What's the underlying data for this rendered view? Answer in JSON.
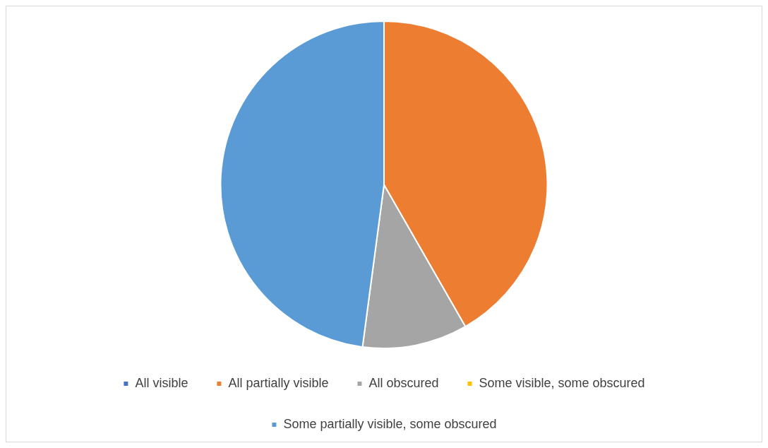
{
  "chart_data": {
    "type": "pie",
    "categories": [
      "All visible",
      "All partially visible",
      "All obscured",
      "Some visible, some obscured",
      "Some partially visible, some obscured"
    ],
    "values": [
      0,
      41.7,
      10.4,
      0,
      47.9
    ],
    "colors": [
      "#4472c4",
      "#ed7d31",
      "#a5a5a5",
      "#ffc000",
      "#5b9bd5"
    ],
    "legend": "bottom"
  }
}
